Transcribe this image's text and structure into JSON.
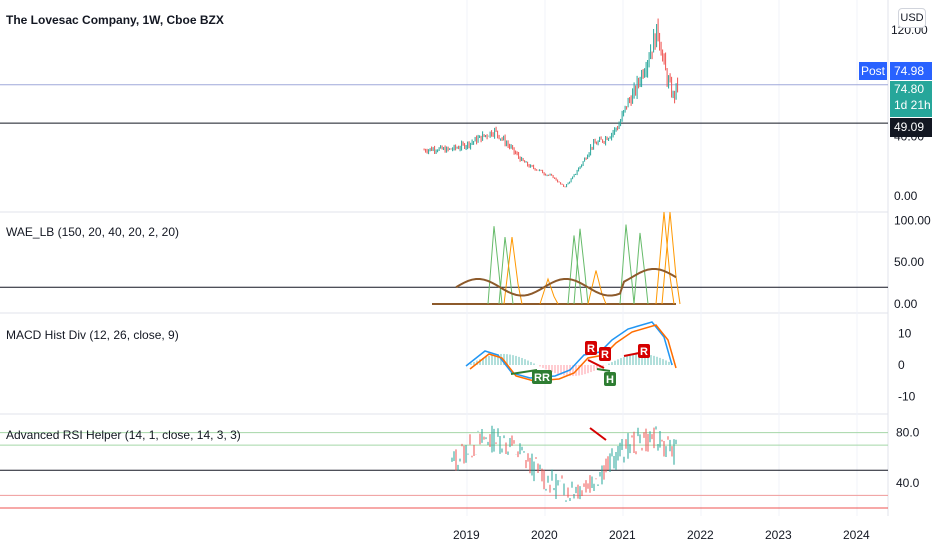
{
  "title": "The Lovesac Company, 1W, Cboe BZX",
  "currency": "USD",
  "post_label": "Post",
  "post_price": "74.98",
  "last_price": "74.80",
  "countdown": "1d 21h",
  "level_price": "49.09",
  "price_axis": {
    "ticks": [
      "40.00",
      "0.00"
    ],
    "top_partial": "120.00"
  },
  "colors": {
    "up": "#26a69a",
    "down": "#ef5350",
    "accent": "#2962ff",
    "grid": "#e0e3eb"
  },
  "x_axis": {
    "ticks": [
      "2019",
      "2020",
      "2021",
      "2022",
      "2023",
      "2024"
    ]
  },
  "chart_data": [
    {
      "type": "line",
      "panel": "price",
      "title": "The Lovesac Company, 1W, Cboe BZX",
      "series": [
        {
          "x": [
            2018.45,
            2018.6,
            2018.75,
            2018.9,
            2019.05,
            2019.2,
            2019.35,
            2019.5,
            2019.6,
            2019.7,
            2019.8,
            2019.9,
            2020.0,
            2020.1,
            2020.2,
            2020.25,
            2020.35,
            2020.5,
            2020.6,
            2020.75,
            2020.85,
            2020.95,
            2021.05,
            2021.15,
            2021.25,
            2021.35,
            2021.45,
            2021.5,
            2021.55,
            2021.65,
            2021.7
          ],
          "values": [
            31,
            32,
            31,
            33,
            36,
            40,
            44,
            36,
            30,
            24,
            20,
            18,
            15,
            13,
            8,
            6,
            12,
            24,
            34,
            38,
            42,
            48,
            62,
            70,
            84,
            98,
            112,
            96,
            82,
            66,
            76
          ]
        }
      ],
      "ylim": [
        0,
        120
      ],
      "hlines": [
        74.98,
        49.09
      ]
    },
    {
      "type": "line",
      "panel": "indicator",
      "title": "WAE_LB (150, 20, 40, 20, 2, 20)",
      "yticks": [
        "100.00",
        "50.00",
        "0.00"
      ],
      "ylim": [
        0,
        110
      ],
      "hline": 20
    },
    {
      "type": "line",
      "panel": "indicator",
      "title": "MACD Hist Div (12, 26, close, 9)",
      "yticks": [
        "10",
        "0",
        "-10"
      ],
      "ylim": [
        -12,
        12
      ],
      "divergence_labels": [
        "RR",
        "R",
        "R",
        "H",
        "R"
      ]
    },
    {
      "type": "line",
      "panel": "indicator",
      "title": "Advanced RSI Helper (14, 1, close, 14, 3, 3)",
      "yticks": [
        "80.0",
        "40.0"
      ],
      "ylim": [
        20,
        90
      ],
      "levels": [
        80,
        70,
        50,
        30,
        20
      ]
    }
  ]
}
